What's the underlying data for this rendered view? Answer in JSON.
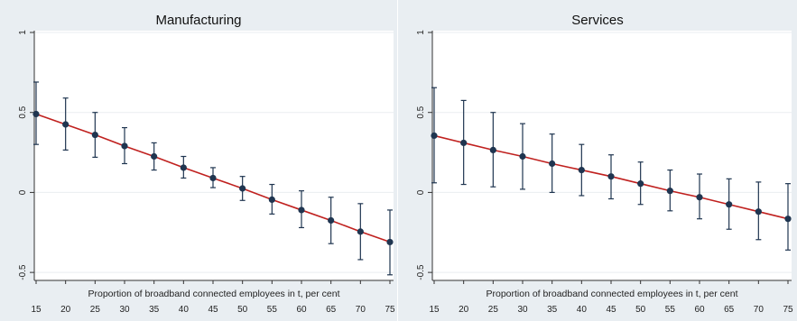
{
  "chart_data": [
    {
      "type": "line",
      "title": "Manufacturing",
      "xlabel": "Proportion of broadband connected employees in t, per cent",
      "ylabel": "",
      "x": [
        15,
        20,
        25,
        30,
        35,
        40,
        45,
        50,
        55,
        60,
        65,
        70,
        75
      ],
      "xlim": [
        15,
        75
      ],
      "ylim": [
        -0.55,
        1.0
      ],
      "yticks": [
        -0.5,
        0,
        0.5,
        1
      ],
      "ytick_labels": [
        "-0.5",
        "0",
        "0.5",
        "1"
      ],
      "xtick_labels": [
        "15",
        "20",
        "25",
        "30",
        "35",
        "40",
        "45",
        "50",
        "55",
        "60",
        "65",
        "70",
        "75"
      ],
      "series": [
        {
          "point_estimates": [
            0.49,
            0.425,
            0.36,
            0.29,
            0.225,
            0.155,
            0.09,
            0.025,
            -0.045,
            -0.11,
            -0.175,
            -0.245,
            -0.31
          ],
          "ci_upper": [
            0.69,
            0.59,
            0.5,
            0.405,
            0.31,
            0.225,
            0.155,
            0.1,
            0.05,
            0.01,
            -0.03,
            -0.07,
            -0.11
          ],
          "ci_lower": [
            0.3,
            0.265,
            0.22,
            0.18,
            0.14,
            0.09,
            0.03,
            -0.05,
            -0.135,
            -0.22,
            -0.32,
            -0.42,
            -0.515
          ]
        }
      ],
      "colors": {
        "fit_line": "#c0211f",
        "points": "#1f3550",
        "error_bars": "#1f3550",
        "background": "#ffffff",
        "outer_background": "#e9eef2"
      },
      "grid": true
    },
    {
      "type": "line",
      "title": "Services",
      "xlabel": "Proportion of broadband connected employees in t, per cent",
      "ylabel": "",
      "x": [
        15,
        20,
        25,
        30,
        35,
        40,
        45,
        50,
        55,
        60,
        65,
        70,
        75
      ],
      "xlim": [
        15,
        75
      ],
      "ylim": [
        -0.55,
        1.0
      ],
      "yticks": [
        -0.5,
        0,
        0.5,
        1
      ],
      "ytick_labels": [
        "-0.5",
        "0",
        "0.5",
        "1"
      ],
      "xtick_labels": [
        "15",
        "20",
        "25",
        "30",
        "35",
        "40",
        "45",
        "50",
        "55",
        "60",
        "65",
        "70",
        "75"
      ],
      "series": [
        {
          "point_estimates": [
            0.355,
            0.31,
            0.265,
            0.225,
            0.18,
            0.14,
            0.1,
            0.055,
            0.01,
            -0.03,
            -0.075,
            -0.12,
            -0.165
          ],
          "ci_upper": [
            0.655,
            0.575,
            0.5,
            0.43,
            0.365,
            0.3,
            0.235,
            0.19,
            0.14,
            0.115,
            0.085,
            0.065,
            0.055
          ],
          "ci_lower": [
            0.06,
            0.05,
            0.035,
            0.02,
            0.0,
            -0.02,
            -0.04,
            -0.075,
            -0.115,
            -0.165,
            -0.23,
            -0.295,
            -0.36
          ]
        }
      ],
      "colors": {
        "fit_line": "#c0211f",
        "points": "#1f3550",
        "error_bars": "#1f3550",
        "background": "#ffffff",
        "outer_background": "#e9eef2"
      },
      "grid": true
    }
  ]
}
